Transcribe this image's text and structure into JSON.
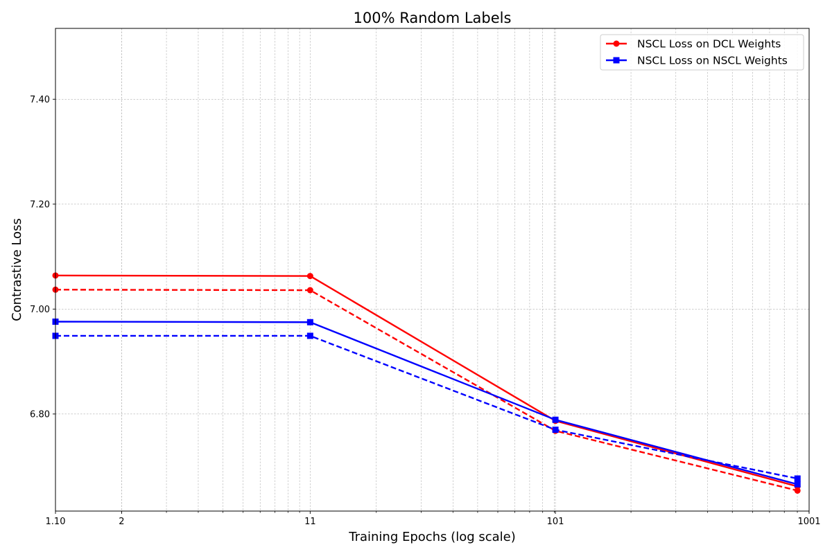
{
  "chart_data": {
    "type": "line",
    "title": "100% Random Labels",
    "xlabel": "Training Epochs (log scale)",
    "ylabel": "Contrastive Loss",
    "x_scale": "log",
    "xlim": [
      1.1,
      1001
    ],
    "ylim": [
      6.615,
      7.535
    ],
    "x_major_ticks": [
      {
        "value": 1.1,
        "label": "1.10"
      },
      {
        "value": 2,
        "label": "2"
      },
      {
        "value": 11,
        "label": "11"
      },
      {
        "value": 101,
        "label": "101"
      },
      {
        "value": 1001,
        "label": "1001"
      }
    ],
    "y_ticks": [
      {
        "value": 6.8,
        "label": "6.80"
      },
      {
        "value": 7.0,
        "label": "7.00"
      },
      {
        "value": 7.2,
        "label": "7.20"
      },
      {
        "value": 7.4,
        "label": "7.40"
      }
    ],
    "grid": true,
    "legend_position": "top-right",
    "x": [
      1.1,
      11,
      101,
      901
    ],
    "series": [
      {
        "name": "NSCL Loss on DCL Weights",
        "color": "#ff0000",
        "linestyle": "solid",
        "marker": "circle",
        "in_legend": true,
        "values": [
          7.064,
          7.063,
          6.787,
          6.662
        ]
      },
      {
        "name": "",
        "color": "#ff0000",
        "linestyle": "dashed",
        "marker": "circle",
        "in_legend": false,
        "values": [
          7.037,
          7.036,
          6.768,
          6.654
        ]
      },
      {
        "name": "NSCL Loss on NSCL Weights",
        "color": "#0000ff",
        "linestyle": "solid",
        "marker": "square",
        "in_legend": true,
        "values": [
          6.976,
          6.975,
          6.789,
          6.666
        ]
      },
      {
        "name": "",
        "color": "#0000ff",
        "linestyle": "dashed",
        "marker": "square",
        "in_legend": false,
        "values": [
          6.949,
          6.949,
          6.77,
          6.677
        ]
      }
    ]
  }
}
